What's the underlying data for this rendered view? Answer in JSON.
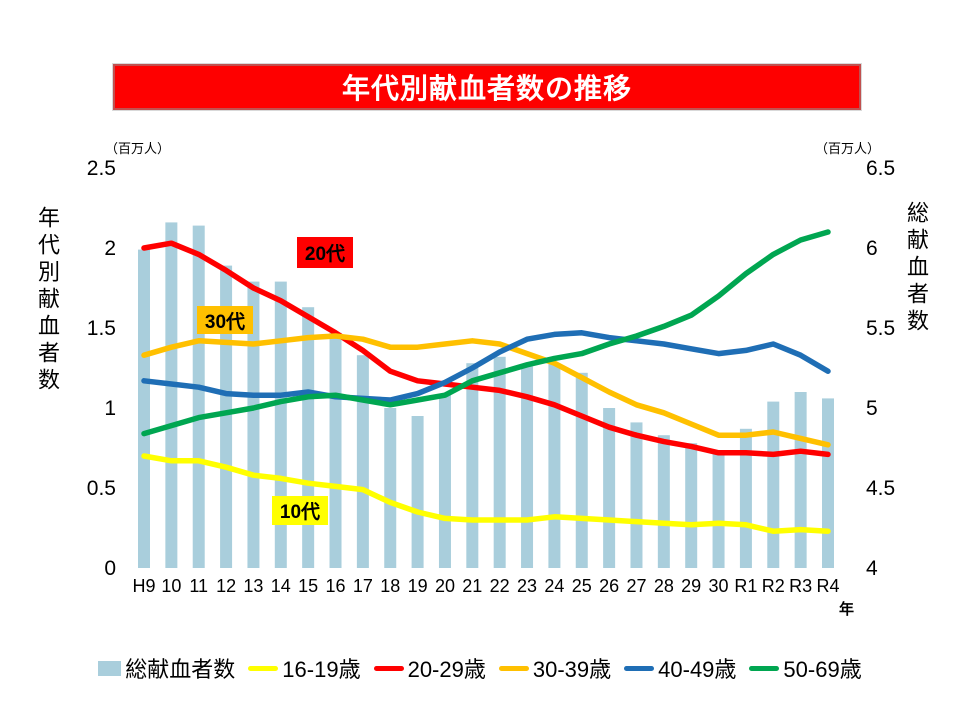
{
  "slide": {
    "title": "年代別献血者数の推移",
    "banner_fill": "#fe0000",
    "banner_border": "#c1504f"
  },
  "left_axis": {
    "unit": "（百万人）",
    "title": "年代別献血者数",
    "ticks": [
      "2.5",
      "2",
      "1.5",
      "1",
      "0.5",
      "0"
    ]
  },
  "right_axis": {
    "unit": "（百万人）",
    "title": "総献血者数",
    "ticks": [
      "6.5",
      "6",
      "5.5",
      "5",
      "4.5",
      "4"
    ]
  },
  "x_axis": {
    "unit": "年",
    "labels": [
      "H9",
      "10",
      "11",
      "12",
      "13",
      "14",
      "15",
      "16",
      "17",
      "18",
      "19",
      "20",
      "21",
      "22",
      "23",
      "24",
      "25",
      "26",
      "27",
      "28",
      "29",
      "30",
      "R1",
      "R2",
      "R3",
      "R4"
    ]
  },
  "annotations": [
    {
      "text": "20代",
      "bg": "#ff0000"
    },
    {
      "text": "30代",
      "bg": "#ffc000"
    },
    {
      "text": "10代",
      "bg": "#ffff00"
    }
  ],
  "legend": [
    {
      "label": "総献血者数",
      "color": "#a9cedc",
      "type": "bar"
    },
    {
      "label": "16-19歳",
      "color": "#ffff00",
      "type": "line"
    },
    {
      "label": "20-29歳",
      "color": "#ff0000",
      "type": "line"
    },
    {
      "label": "30-39歳",
      "color": "#ffc000",
      "type": "line"
    },
    {
      "label": "40-49歳",
      "color": "#1f6eb5",
      "type": "line"
    },
    {
      "label": "50-69歳",
      "color": "#00a651",
      "type": "line"
    }
  ],
  "chart_data": {
    "type": "bar+line",
    "categories": [
      "H9",
      "10",
      "11",
      "12",
      "13",
      "14",
      "15",
      "16",
      "17",
      "18",
      "19",
      "20",
      "21",
      "22",
      "23",
      "24",
      "25",
      "26",
      "27",
      "28",
      "29",
      "30",
      "R1",
      "R2",
      "R3",
      "R4"
    ],
    "xlabel": "年",
    "grid": false,
    "legend_position": "bottom",
    "left_axis": {
      "label": "年代別献血者数",
      "unit": "百万人",
      "range": [
        0,
        2.5
      ]
    },
    "right_axis": {
      "label": "総献血者数",
      "unit": "百万人",
      "range": [
        4,
        6.5
      ]
    },
    "series": [
      {
        "name": "総献血者数",
        "type": "bar",
        "axis": "right",
        "color": "#a9cedc",
        "values": [
          5.99,
          6.16,
          6.14,
          5.89,
          5.79,
          5.79,
          5.63,
          5.47,
          5.33,
          5.0,
          4.95,
          5.08,
          5.28,
          5.32,
          5.26,
          5.28,
          5.22,
          5.0,
          4.91,
          4.83,
          4.78,
          4.72,
          4.87,
          5.04,
          5.1,
          5.06
        ]
      },
      {
        "name": "16-19歳",
        "type": "line",
        "axis": "left",
        "color": "#ffff00",
        "values": [
          0.7,
          0.67,
          0.67,
          0.63,
          0.58,
          0.56,
          0.53,
          0.51,
          0.49,
          0.41,
          0.35,
          0.31,
          0.3,
          0.3,
          0.3,
          0.32,
          0.31,
          0.3,
          0.29,
          0.28,
          0.27,
          0.28,
          0.27,
          0.23,
          0.24,
          0.23
        ]
      },
      {
        "name": "20-29歳",
        "type": "line",
        "axis": "left",
        "color": "#ff0000",
        "values": [
          2.0,
          2.03,
          1.96,
          1.86,
          1.75,
          1.67,
          1.57,
          1.47,
          1.36,
          1.23,
          1.17,
          1.15,
          1.13,
          1.11,
          1.07,
          1.02,
          0.95,
          0.88,
          0.83,
          0.79,
          0.76,
          0.72,
          0.72,
          0.71,
          0.73,
          0.71
        ]
      },
      {
        "name": "30-39歳",
        "type": "line",
        "axis": "left",
        "color": "#ffc000",
        "values": [
          1.33,
          1.38,
          1.42,
          1.41,
          1.4,
          1.42,
          1.44,
          1.45,
          1.43,
          1.38,
          1.38,
          1.4,
          1.42,
          1.4,
          1.34,
          1.28,
          1.19,
          1.1,
          1.02,
          0.97,
          0.9,
          0.83,
          0.83,
          0.85,
          0.81,
          0.77
        ]
      },
      {
        "name": "40-49歳",
        "type": "line",
        "axis": "left",
        "color": "#1f6eb5",
        "values": [
          1.17,
          1.15,
          1.13,
          1.09,
          1.08,
          1.08,
          1.1,
          1.07,
          1.06,
          1.05,
          1.09,
          1.16,
          1.25,
          1.35,
          1.43,
          1.46,
          1.47,
          1.44,
          1.42,
          1.4,
          1.37,
          1.34,
          1.36,
          1.4,
          1.33,
          1.23
        ]
      },
      {
        "name": "50-69歳",
        "type": "line",
        "axis": "left",
        "color": "#00a651",
        "values": [
          0.84,
          0.89,
          0.94,
          0.97,
          1.0,
          1.04,
          1.07,
          1.08,
          1.05,
          1.02,
          1.05,
          1.08,
          1.17,
          1.22,
          1.27,
          1.31,
          1.34,
          1.4,
          1.45,
          1.51,
          1.58,
          1.7,
          1.84,
          1.96,
          2.05,
          2.1
        ]
      }
    ]
  }
}
